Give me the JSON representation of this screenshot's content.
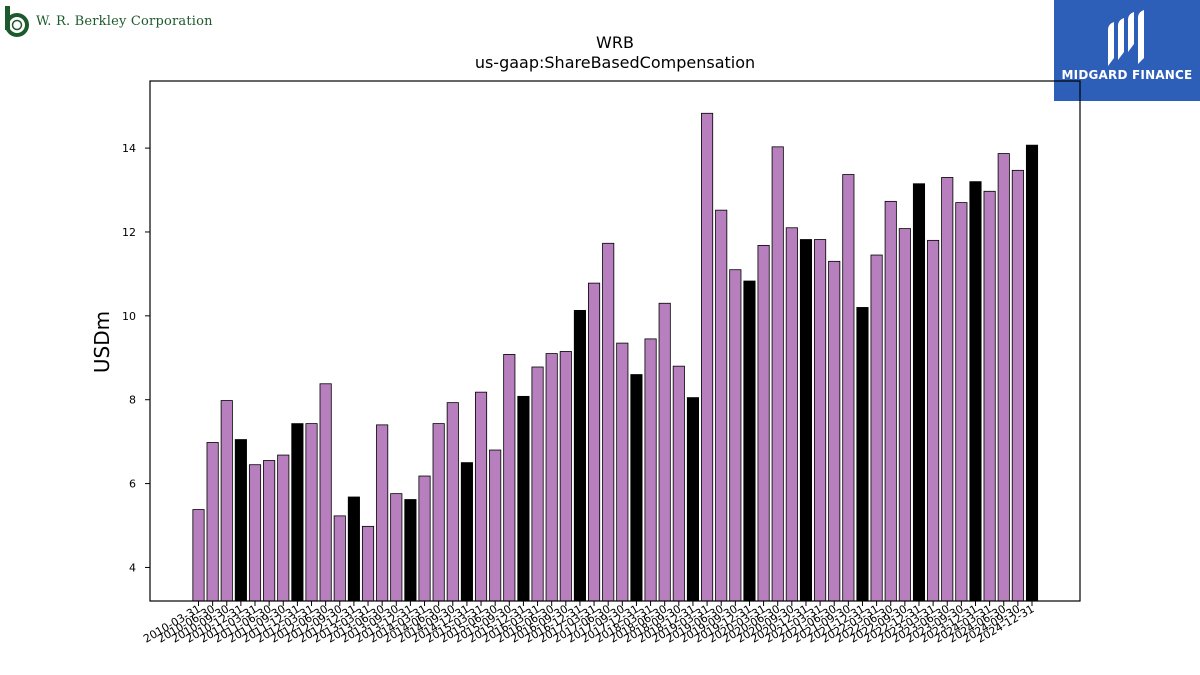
{
  "header": {
    "company_name": "W. R. Berkley Corporation",
    "brand_name": "MIDGARD FINANCE",
    "brand_color": "#2e5fb8",
    "company_color": "#1d5a2b"
  },
  "chart_data": {
    "type": "bar",
    "title": "WRB",
    "subtitle": "us-gaap:ShareBasedCompensation",
    "xlabel": "",
    "ylabel": "USDm",
    "ylim": [
      3.2,
      15.6
    ],
    "yticks": [
      4,
      6,
      8,
      10,
      12,
      14
    ],
    "grid": false,
    "bar_color": "#b77fbd",
    "highlight_color": "#000000",
    "categories": [
      "2010-03-31",
      "2010-06-30",
      "2010-09-30",
      "2010-12-31",
      "2011-03-31",
      "2011-06-30",
      "2011-09-30",
      "2011-12-31",
      "2012-03-31",
      "2012-06-30",
      "2012-09-30",
      "2012-12-31",
      "2013-03-31",
      "2013-06-30",
      "2013-09-30",
      "2013-12-31",
      "2014-03-31",
      "2014-06-30",
      "2014-09-30",
      "2014-12-31",
      "2015-03-31",
      "2015-06-30",
      "2015-09-30",
      "2015-12-31",
      "2016-03-31",
      "2016-06-30",
      "2016-09-30",
      "2016-12-31",
      "2017-03-31",
      "2017-06-30",
      "2017-09-30",
      "2017-12-31",
      "2018-03-31",
      "2018-06-30",
      "2018-09-30",
      "2018-12-31",
      "2019-03-31",
      "2019-06-30",
      "2019-09-30",
      "2019-12-31",
      "2020-03-31",
      "2020-06-30",
      "2020-09-30",
      "2020-12-31",
      "2021-03-31",
      "2021-06-30",
      "2021-09-30",
      "2021-12-31",
      "2022-03-31",
      "2022-06-30",
      "2022-09-30",
      "2022-12-31",
      "2023-03-31",
      "2023-06-30",
      "2023-09-30",
      "2023-12-31",
      "2024-03-31",
      "2024-06-30",
      "2024-09-30",
      "2024-12-31"
    ],
    "values": [
      5.38,
      6.98,
      7.98,
      7.05,
      6.45,
      6.55,
      6.68,
      7.43,
      7.43,
      8.38,
      5.23,
      5.68,
      4.98,
      7.4,
      5.76,
      5.62,
      6.18,
      7.43,
      7.93,
      6.5,
      8.18,
      6.8,
      9.08,
      8.08,
      8.78,
      9.1,
      9.15,
      10.13,
      10.78,
      11.73,
      9.35,
      8.6,
      9.45,
      10.3,
      8.8,
      8.05,
      14.83,
      12.52,
      11.1,
      10.83,
      11.68,
      14.03,
      12.1,
      11.82,
      11.82,
      11.3,
      13.37,
      10.2,
      11.45,
      12.73,
      12.08,
      13.15,
      11.8,
      13.3,
      12.7,
      13.2,
      12.97,
      13.87,
      13.47,
      14.07
    ],
    "highlighted": [
      false,
      false,
      false,
      true,
      false,
      false,
      false,
      true,
      false,
      false,
      false,
      true,
      false,
      false,
      false,
      true,
      false,
      false,
      false,
      true,
      false,
      false,
      false,
      true,
      false,
      false,
      false,
      true,
      false,
      false,
      false,
      true,
      false,
      false,
      false,
      true,
      false,
      false,
      false,
      true,
      false,
      false,
      false,
      true,
      false,
      false,
      false,
      true,
      false,
      false,
      false,
      true,
      false,
      false,
      false,
      true,
      false,
      false,
      false,
      true
    ]
  }
}
